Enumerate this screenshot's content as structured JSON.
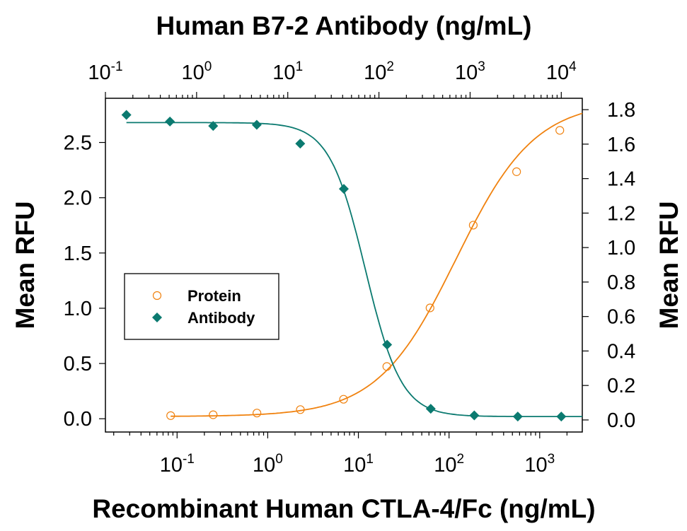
{
  "chart_data": {
    "type": "scatter",
    "title": "Human B7-2 Antibody (ng/mL)",
    "xlabel": "Recombinant Human CTLA-4/Fc (ng/mL)",
    "ylabel_left": "Mean RFU",
    "ylabel_right": "Mean RFU",
    "x_bottom": {
      "scale": "log",
      "range": [
        0.0162,
        2950
      ],
      "ticks": [
        {
          "base": "10",
          "exp": "-1"
        },
        {
          "base": "10",
          "exp": "0"
        },
        {
          "base": "10",
          "exp": "1"
        },
        {
          "base": "10",
          "exp": "2"
        },
        {
          "base": "10",
          "exp": "3"
        }
      ]
    },
    "x_top": {
      "scale": "log",
      "range": [
        0.1,
        17000
      ],
      "ticks": [
        {
          "base": "10",
          "exp": "-1"
        },
        {
          "base": "10",
          "exp": "0"
        },
        {
          "base": "10",
          "exp": "1"
        },
        {
          "base": "10",
          "exp": "2"
        },
        {
          "base": "10",
          "exp": "3"
        },
        {
          "base": "10",
          "exp": "4"
        }
      ]
    },
    "y_left": {
      "range": [
        -0.12,
        2.9
      ],
      "ticks": [
        "0.0",
        "0.5",
        "1.0",
        "1.5",
        "2.0",
        "2.5"
      ]
    },
    "y_right": {
      "range": [
        -0.07,
        1.866
      ],
      "ticks": [
        "0.0",
        "0.2",
        "0.4",
        "0.6",
        "0.8",
        "1.0",
        "1.2",
        "1.4",
        "1.6",
        "1.8"
      ]
    },
    "grid": false,
    "legend": {
      "placement": "center-left",
      "entries": [
        "Protein",
        "Antibody"
      ]
    },
    "series": [
      {
        "name": "Protein",
        "marker": "open-circle",
        "color": "#f0820f",
        "x_axis": "bottom",
        "y_axis": "right",
        "x": [
          0.085,
          0.25,
          0.76,
          2.29,
          6.86,
          20.6,
          61.7,
          185,
          556,
          1667
        ],
        "y": [
          0.025,
          0.03,
          0.04,
          0.06,
          0.12,
          0.31,
          0.65,
          1.13,
          1.44,
          1.68
        ],
        "fit": {
          "bottom": 0.02,
          "top": 1.85,
          "ec50": 120,
          "hill": 1.0,
          "x_from": 0.085,
          "x_to": 2950
        }
      },
      {
        "name": "Antibody",
        "marker": "filled-diamond",
        "color": "#0b7a70",
        "x_axis": "top",
        "y_axis": "left",
        "x": [
          0.17,
          0.51,
          1.52,
          4.57,
          13.7,
          41.2,
          123,
          370,
          1111,
          3333,
          10000
        ],
        "y": [
          2.75,
          2.69,
          2.65,
          2.66,
          2.49,
          2.08,
          0.67,
          0.09,
          0.03,
          0.02,
          0.02
        ],
        "fit": {
          "bottom": 0.02,
          "top": 2.68,
          "ec50": 71,
          "hill": -2.2,
          "x_from": 0.17,
          "x_to": 17000
        }
      }
    ]
  }
}
